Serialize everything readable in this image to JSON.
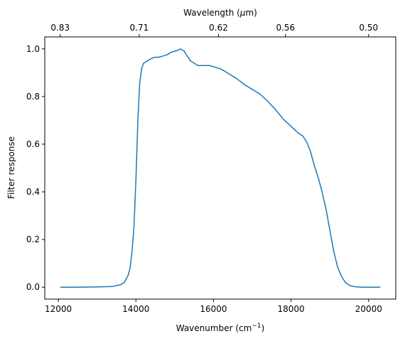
{
  "chart_data": {
    "type": "line",
    "xlabel": "Wavenumber (cm",
    "xlabel_sup": "−1",
    "xlabel_close": ")",
    "ylabel": "Filter response",
    "top_xlabel": "Wavelength (",
    "top_xlabel_mu": "μ",
    "top_xlabel_unit": "m)",
    "xlim": [
      11650,
      20700
    ],
    "ylim": [
      -0.05,
      1.05
    ],
    "x_ticks": [
      12000,
      14000,
      16000,
      18000,
      20000
    ],
    "x_tick_labels": [
      "12000",
      "14000",
      "16000",
      "18000",
      "20000"
    ],
    "y_ticks": [
      0.0,
      0.2,
      0.4,
      0.6,
      0.8,
      1.0
    ],
    "y_tick_labels": [
      "0.0",
      "0.2",
      "0.4",
      "0.6",
      "0.8",
      "1.0"
    ],
    "top_ticks": [
      12048,
      14085,
      16129,
      17857,
      20000
    ],
    "top_tick_labels": [
      "0.83",
      "0.71",
      "0.62",
      "0.56",
      "0.50"
    ],
    "grid": false,
    "line_color": "#1f77b4",
    "series": [
      {
        "x": [
          12050,
          12500,
          13000,
          13400,
          13600,
          13700,
          13800,
          13850,
          13900,
          13950,
          14000,
          14050,
          14100,
          14150,
          14200,
          14250,
          14300,
          14350,
          14400,
          14500,
          14600,
          14700,
          14800,
          14900,
          15000,
          15100,
          15150,
          15200,
          15250,
          15300,
          15350,
          15400,
          15500,
          15600,
          15700,
          15800,
          15900,
          16000,
          16200,
          16400,
          16600,
          16800,
          17000,
          17200,
          17400,
          17600,
          17800,
          18000,
          18200,
          18300,
          18400,
          18500,
          18600,
          18700,
          18800,
          18900,
          19000,
          19100,
          19200,
          19300,
          19400,
          19500,
          19600,
          19700,
          19800,
          19900,
          20000,
          20150,
          20300
        ],
        "y": [
          0.0,
          0.0,
          0.001,
          0.003,
          0.01,
          0.02,
          0.05,
          0.08,
          0.15,
          0.25,
          0.45,
          0.7,
          0.86,
          0.92,
          0.94,
          0.945,
          0.95,
          0.955,
          0.96,
          0.965,
          0.965,
          0.97,
          0.975,
          0.985,
          0.99,
          0.995,
          1.0,
          0.995,
          0.99,
          0.975,
          0.965,
          0.95,
          0.94,
          0.93,
          0.93,
          0.93,
          0.93,
          0.925,
          0.915,
          0.895,
          0.875,
          0.85,
          0.83,
          0.81,
          0.78,
          0.745,
          0.705,
          0.675,
          0.645,
          0.635,
          0.61,
          0.57,
          0.51,
          0.46,
          0.4,
          0.33,
          0.24,
          0.15,
          0.085,
          0.045,
          0.02,
          0.008,
          0.003,
          0.001,
          0.0,
          0.0,
          0.0,
          0.0,
          0.0
        ]
      }
    ]
  }
}
